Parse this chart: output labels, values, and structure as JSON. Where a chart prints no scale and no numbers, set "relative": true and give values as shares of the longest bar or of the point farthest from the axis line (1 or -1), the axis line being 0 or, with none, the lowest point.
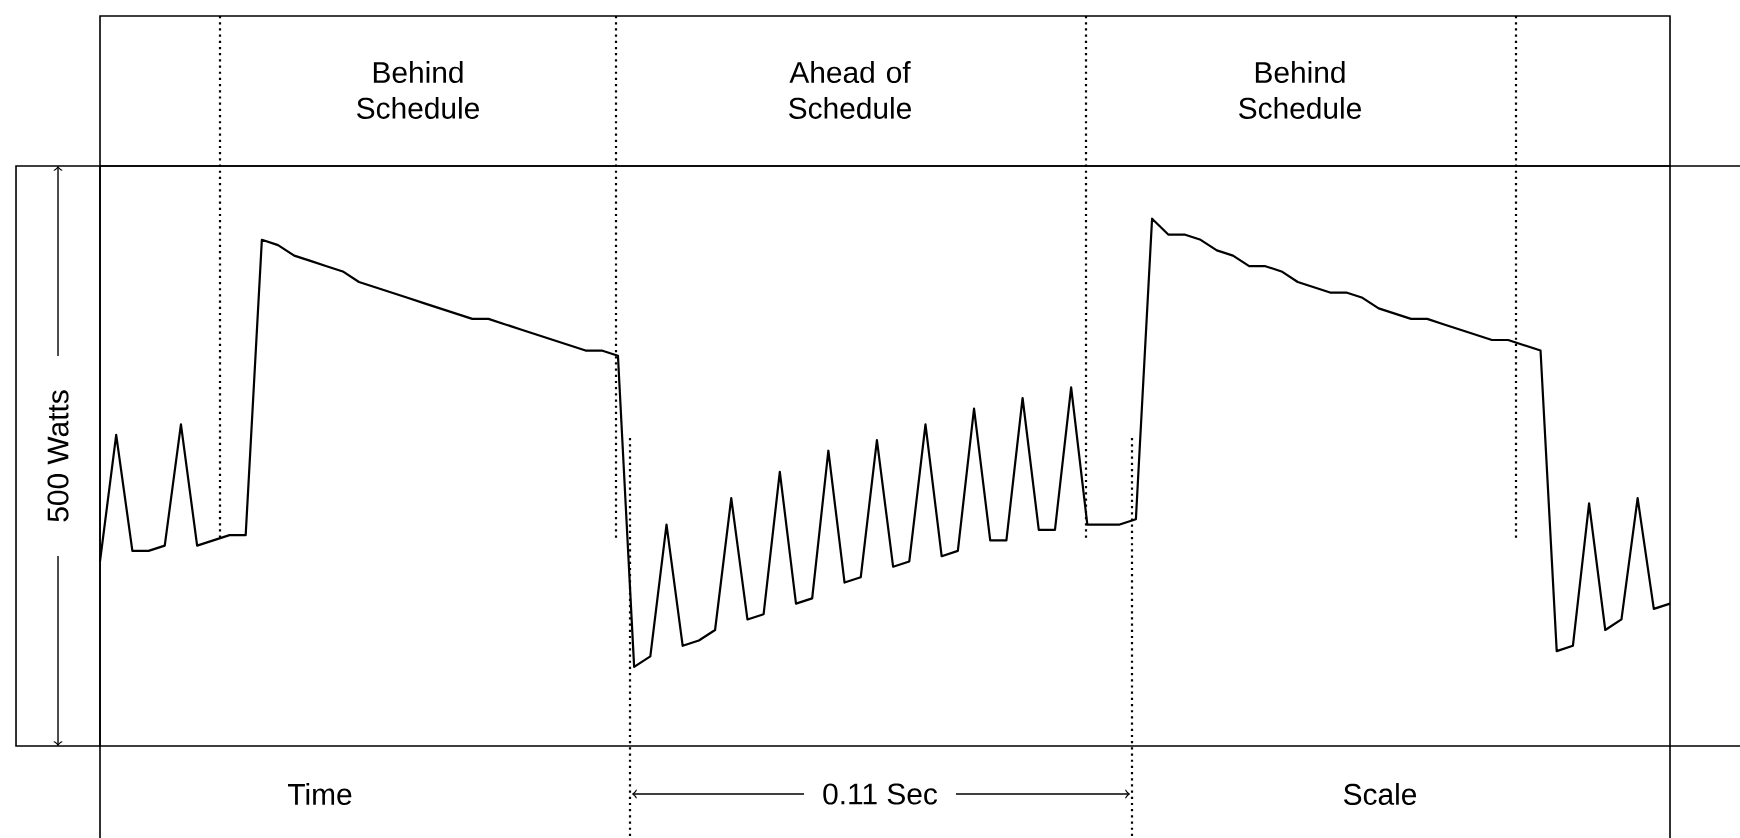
{
  "chart_data": {
    "type": "line",
    "relative": true,
    "tick_labels": false,
    "color": "#000000",
    "categories": [
      null,
      null,
      null,
      null,
      null,
      null,
      null,
      null,
      null,
      null,
      null,
      null,
      null,
      null,
      null,
      null,
      null,
      null,
      null,
      null,
      null,
      null,
      null,
      null,
      null,
      null,
      null,
      null,
      null,
      null,
      null,
      null,
      null,
      null,
      null,
      null,
      null,
      null,
      null,
      null,
      null,
      null,
      null,
      null,
      null,
      null,
      null,
      null,
      null,
      null,
      null,
      null,
      null,
      null,
      null,
      null,
      null,
      null,
      null,
      null,
      null,
      null,
      null,
      null,
      null,
      null,
      null,
      null,
      null,
      null,
      null,
      null,
      null,
      null,
      null,
      null,
      null,
      null,
      null,
      null,
      null,
      null,
      null,
      null,
      null,
      null,
      null,
      null,
      null,
      null,
      null,
      null,
      null,
      null,
      null,
      null,
      null,
      null
    ],
    "values": [
      0.35,
      0.59,
      0.37,
      0.37,
      0.38,
      0.61,
      0.38,
      0.39,
      0.4,
      0.4,
      0.96,
      0.95,
      0.93,
      0.92,
      0.91,
      0.9,
      0.88,
      0.87,
      0.86,
      0.85,
      0.84,
      0.83,
      0.82,
      0.81,
      0.81,
      0.8,
      0.79,
      0.78,
      0.77,
      0.76,
      0.75,
      0.75,
      0.74,
      0.15,
      0.17,
      0.42,
      0.19,
      0.2,
      0.22,
      0.47,
      0.24,
      0.25,
      0.52,
      0.27,
      0.28,
      0.56,
      0.31,
      0.32,
      0.58,
      0.34,
      0.35,
      0.61,
      0.36,
      0.37,
      0.64,
      0.39,
      0.39,
      0.66,
      0.41,
      0.41,
      0.68,
      0.42,
      0.42,
      0.42,
      0.43,
      1.0,
      0.97,
      0.97,
      0.96,
      0.94,
      0.93,
      0.91,
      0.91,
      0.9,
      0.88,
      0.87,
      0.86,
      0.86,
      0.85,
      0.83,
      0.82,
      0.81,
      0.81,
      0.8,
      0.79,
      0.78,
      0.77,
      0.77,
      0.76,
      0.75,
      0.18,
      0.19,
      0.46,
      0.22,
      0.24,
      0.47,
      0.26,
      0.27
    ],
    "annotations": [
      "Behind Schedule",
      "Ahead of Schedule",
      "Behind Schedule",
      "500 Watts",
      "Time",
      "0.11 Sec",
      "Scale"
    ]
  }
}
